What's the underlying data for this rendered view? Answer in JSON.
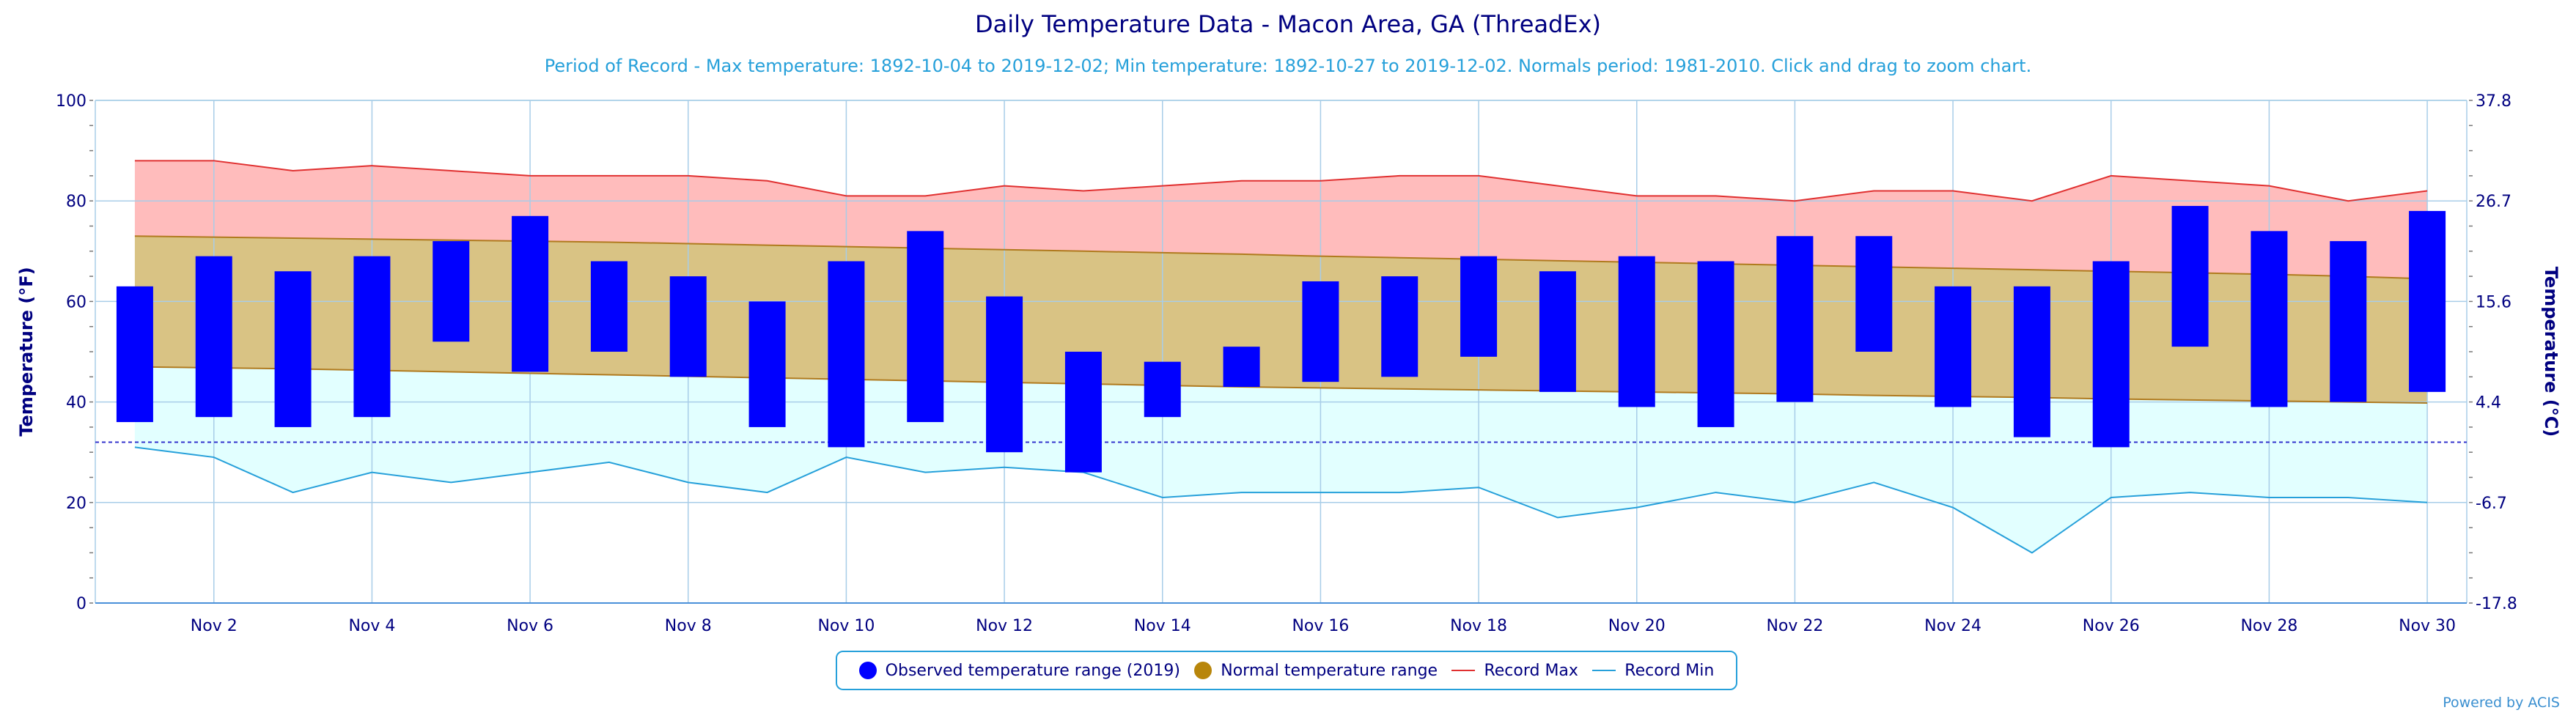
{
  "title": "Daily Temperature Data - Macon Area, GA (ThreadEx)",
  "subtitle": "Period of Record - Max temperature: 1892-10-04 to 2019-12-02; Min temperature: 1892-10-27 to 2019-12-02. Normals period: 1981-2010. Click and drag to zoom chart.",
  "credit": "Powered by ACIS",
  "colors": {
    "observed": "#0000ff",
    "normal_fill": "#d9c384",
    "normal_marker": "#b8860b",
    "normal_edge": "#b07a1e",
    "record_max_line": "#e03030",
    "record_max_fill": "#ffbcbc",
    "record_min_line": "#26a0da",
    "record_min_fill": "#e2ffff",
    "grid": "#a8cde8",
    "axis_text": "#000080",
    "freeze_line": "#3333cc"
  },
  "legend": {
    "observed": "Observed temperature range (2019)",
    "normal": "Normal temperature range",
    "record_max": "Record Max",
    "record_min": "Record Min"
  },
  "chart_data": {
    "type": "bar",
    "title": "Daily Temperature Data - Macon Area, GA (ThreadEx)",
    "ylabel": "Temperature (°F)",
    "ylabel_right": "Temperature (°C)",
    "ylim": [
      0,
      100
    ],
    "yticks": [
      0,
      20,
      40,
      60,
      80,
      100
    ],
    "yticks_right": [
      "-17.8",
      "-6.7",
      "4.4",
      "15.6",
      "26.7",
      "37.8"
    ],
    "grid": true,
    "freeze_line": 32,
    "legend_position": "bottom",
    "days": [
      1,
      2,
      3,
      4,
      5,
      6,
      7,
      8,
      9,
      10,
      11,
      12,
      13,
      14,
      15,
      16,
      17,
      18,
      19,
      20,
      21,
      22,
      23,
      24,
      25,
      26,
      27,
      28,
      29,
      30
    ],
    "x_tick_labels": [
      "Nov 2",
      "Nov 4",
      "Nov 6",
      "Nov 8",
      "Nov 10",
      "Nov 12",
      "Nov 14",
      "Nov 16",
      "Nov 18",
      "Nov 20",
      "Nov 22",
      "Nov 24",
      "Nov 26",
      "Nov 28",
      "Nov 30"
    ],
    "observed_high": [
      63,
      69,
      66,
      69,
      72,
      77,
      68,
      65,
      60,
      68,
      74,
      61,
      50,
      48,
      51,
      64,
      65,
      69,
      66,
      69,
      68,
      73,
      73,
      63,
      63,
      68,
      79,
      74,
      72,
      78
    ],
    "observed_low": [
      36,
      37,
      35,
      37,
      52,
      46,
      50,
      45,
      35,
      31,
      36,
      30,
      26,
      37,
      43,
      44,
      45,
      49,
      42,
      39,
      35,
      40,
      50,
      39,
      33,
      31,
      51,
      39,
      40,
      42
    ],
    "normal_high": [
      73,
      72.8,
      72.6,
      72.4,
      72.2,
      72,
      71.8,
      71.5,
      71.2,
      70.9,
      70.6,
      70.3,
      70,
      69.7,
      69.4,
      69,
      68.7,
      68.4,
      68.1,
      67.8,
      67.5,
      67.2,
      66.9,
      66.6,
      66.3,
      66,
      65.7,
      65.4,
      65,
      64.5
    ],
    "normal_low": [
      47,
      46.8,
      46.6,
      46.3,
      46,
      45.7,
      45.4,
      45.1,
      44.8,
      44.5,
      44.2,
      43.9,
      43.6,
      43.3,
      43,
      42.8,
      42.6,
      42.4,
      42.2,
      42,
      41.8,
      41.6,
      41.3,
      41.1,
      40.9,
      40.6,
      40.4,
      40.2,
      40,
      39.8
    ],
    "record_max": [
      88,
      88,
      86,
      87,
      86,
      85,
      85,
      85,
      84,
      81,
      81,
      83,
      82,
      83,
      84,
      84,
      85,
      85,
      83,
      81,
      81,
      80,
      82,
      82,
      80,
      85,
      84,
      83,
      80,
      82
    ],
    "record_min": [
      31,
      29,
      22,
      26,
      24,
      26,
      28,
      24,
      22,
      29,
      26,
      27,
      26,
      21,
      22,
      22,
      22,
      23,
      17,
      19,
      22,
      20,
      24,
      19,
      10,
      21,
      22,
      21,
      21,
      20
    ]
  }
}
